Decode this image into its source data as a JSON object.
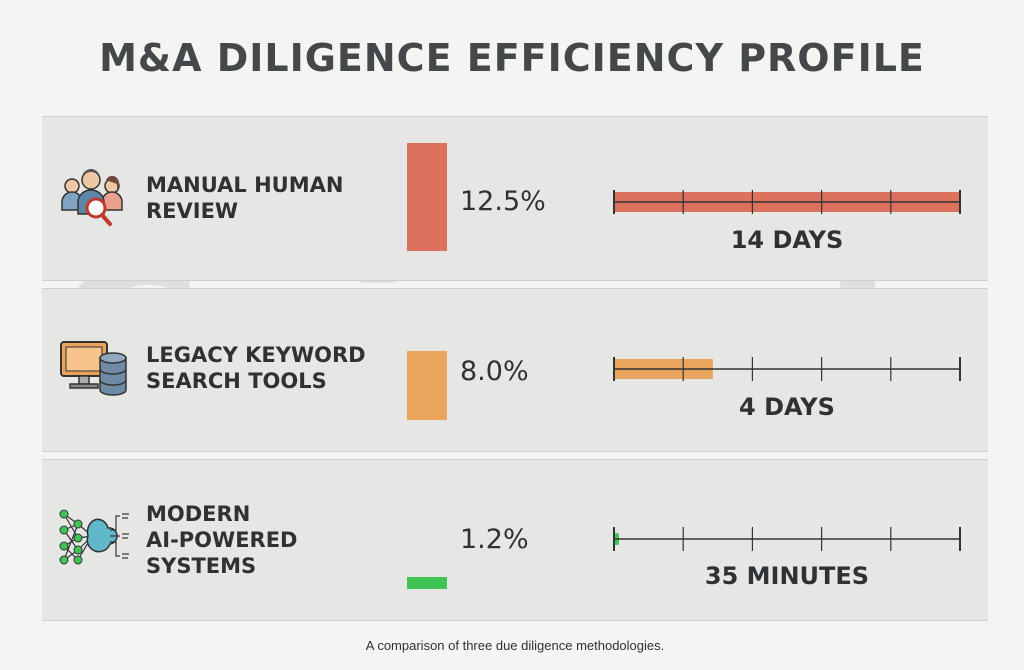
{
  "title": "M&A DILIGENCE EFFICIENCY PROFILE",
  "caption": "A comparison of three due diligence methodologies.",
  "watermark": "Coincub",
  "colors": {
    "manual": "#dc715e",
    "legacy": "#eaa45e",
    "ai": "#3fc455"
  },
  "chart_data": {
    "type": "bar",
    "title": "M&A DILIGENCE EFFICIENCY PROFILE",
    "categories": [
      "MANUAL HUMAN REVIEW",
      "LEGACY KEYWORD SEARCH TOOLS",
      "MODERN AI-POWERED SYSTEMS"
    ],
    "series": [
      {
        "values": [
          12.5,
          8.0,
          1.2
        ],
        "unit": "%"
      },
      {
        "values": [
          14,
          4,
          0.024
        ],
        "unit": "days"
      }
    ],
    "rate_labels": [
      "12.5%",
      "8.0%",
      "1.2%"
    ],
    "time_labels": [
      "14 DAYS",
      "4 DAYS",
      "35 MINUTES"
    ],
    "timeline_max_days": 14,
    "timeline_ticks": 5
  },
  "rows": [
    {
      "label": "MANUAL HUMAN\nREVIEW",
      "icon": "people-magnifier-icon",
      "rate": "12.5%",
      "time": "14 DAYS"
    },
    {
      "label": "LEGACY KEYWORD\nSEARCH TOOLS",
      "icon": "computer-database-icon",
      "rate": "8.0%",
      "time": "4 DAYS"
    },
    {
      "label": "MODERN\nAI-POWERED\nSYSTEMS",
      "icon": "neural-network-brain-icon",
      "rate": "1.2%",
      "time": "35 MINUTES"
    }
  ]
}
